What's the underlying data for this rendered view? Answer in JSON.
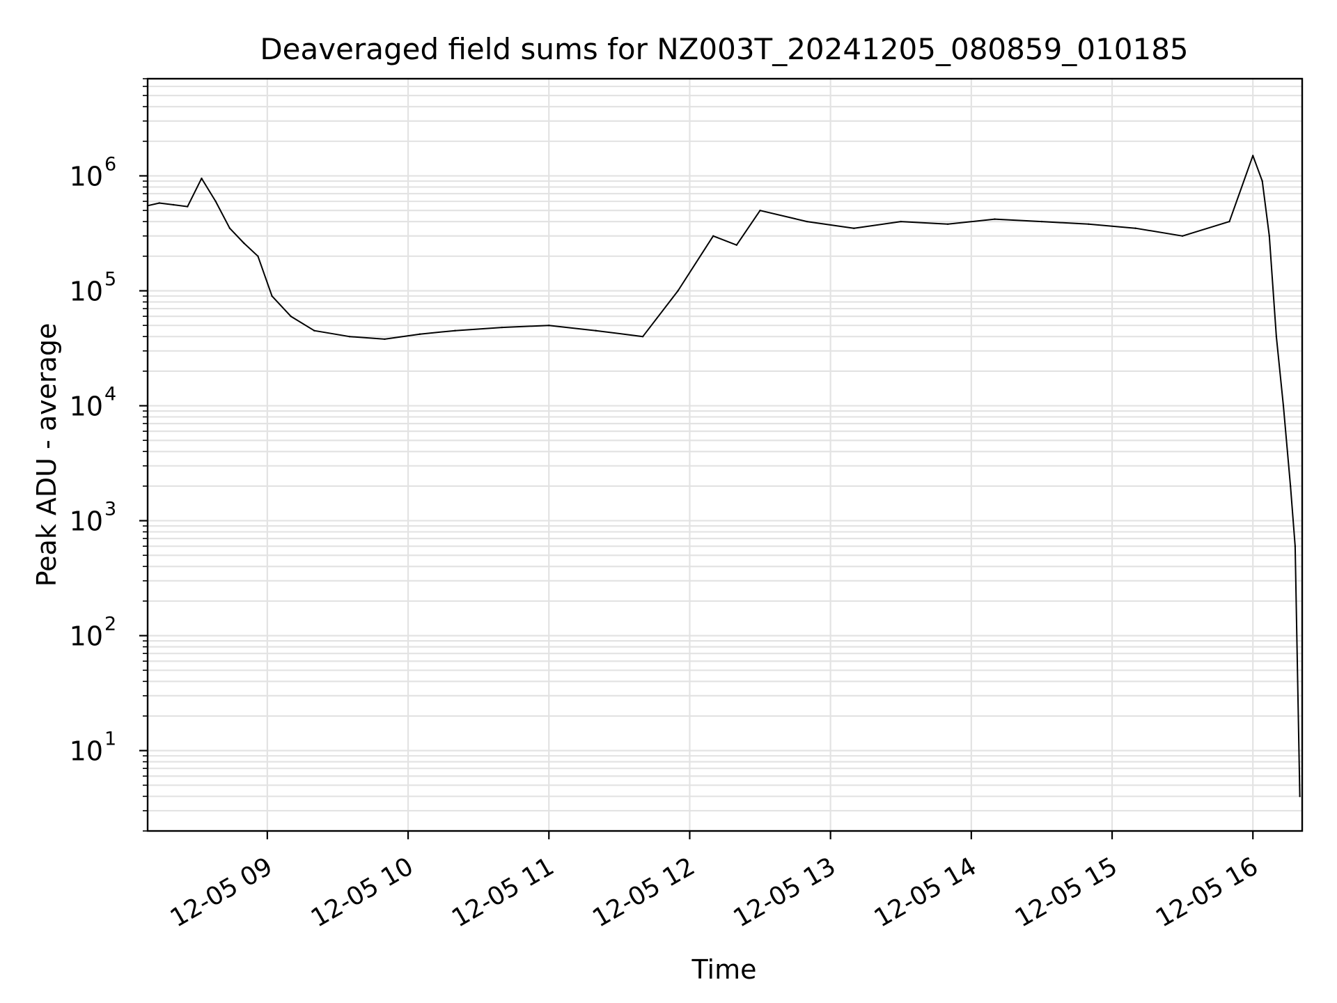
{
  "chart_data": {
    "type": "line",
    "title": "Deaveraged field sums for NZ003T_20241205_080859_010185",
    "xlabel": "Time",
    "ylabel": "Peak ADU - average",
    "yscale": "log",
    "ylim": [
      2,
      7000000
    ],
    "xlim": [
      "2024-12-05 08:09",
      "2024-12-05 16:21"
    ],
    "grid": true,
    "line_color": "#000000",
    "grid_color": "#e3e3e3",
    "x_tick_labels": [
      "12-05 09",
      "12-05 10",
      "12-05 11",
      "12-05 12",
      "12-05 13",
      "12-05 14",
      "12-05 15",
      "12-05 16"
    ],
    "y_ticks": [
      {
        "base": "10",
        "exp": "1"
      },
      {
        "base": "10",
        "exp": "2"
      },
      {
        "base": "10",
        "exp": "3"
      },
      {
        "base": "10",
        "exp": "4"
      },
      {
        "base": "10",
        "exp": "5"
      },
      {
        "base": "10",
        "exp": "6"
      }
    ],
    "series": [
      {
        "x": [
          "2024-12-05 08:09",
          "2024-12-05 08:14",
          "2024-12-05 08:20",
          "2024-12-05 08:26",
          "2024-12-05 08:32",
          "2024-12-05 08:38",
          "2024-12-05 08:44",
          "2024-12-05 08:50",
          "2024-12-05 08:56",
          "2024-12-05 09:02",
          "2024-12-05 09:10",
          "2024-12-05 09:20",
          "2024-12-05 09:35",
          "2024-12-05 09:50",
          "2024-12-05 10:05",
          "2024-12-05 10:20",
          "2024-12-05 10:40",
          "2024-12-05 11:00",
          "2024-12-05 11:20",
          "2024-12-05 11:40",
          "2024-12-05 11:55",
          "2024-12-05 12:10",
          "2024-12-05 12:20",
          "2024-12-05 12:30",
          "2024-12-05 12:50",
          "2024-12-05 13:10",
          "2024-12-05 13:30",
          "2024-12-05 13:50",
          "2024-12-05 14:10",
          "2024-12-05 14:30",
          "2024-12-05 14:50",
          "2024-12-05 15:10",
          "2024-12-05 15:30",
          "2024-12-05 15:50",
          "2024-12-05 16:00",
          "2024-12-05 16:04",
          "2024-12-05 16:07",
          "2024-12-05 16:10",
          "2024-12-05 16:13",
          "2024-12-05 16:16",
          "2024-12-05 16:18",
          "2024-12-05 16:20"
        ],
        "values": [
          550000,
          580000,
          560000,
          540000,
          950000,
          600000,
          350000,
          260000,
          200000,
          90000,
          60000,
          45000,
          40000,
          38000,
          42000,
          45000,
          48000,
          50000,
          45000,
          40000,
          100000,
          300000,
          250000,
          500000,
          400000,
          350000,
          400000,
          380000,
          420000,
          400000,
          380000,
          350000,
          300000,
          400000,
          1500000,
          900000,
          300000,
          40000,
          10000,
          2000,
          600,
          4
        ]
      }
    ]
  }
}
